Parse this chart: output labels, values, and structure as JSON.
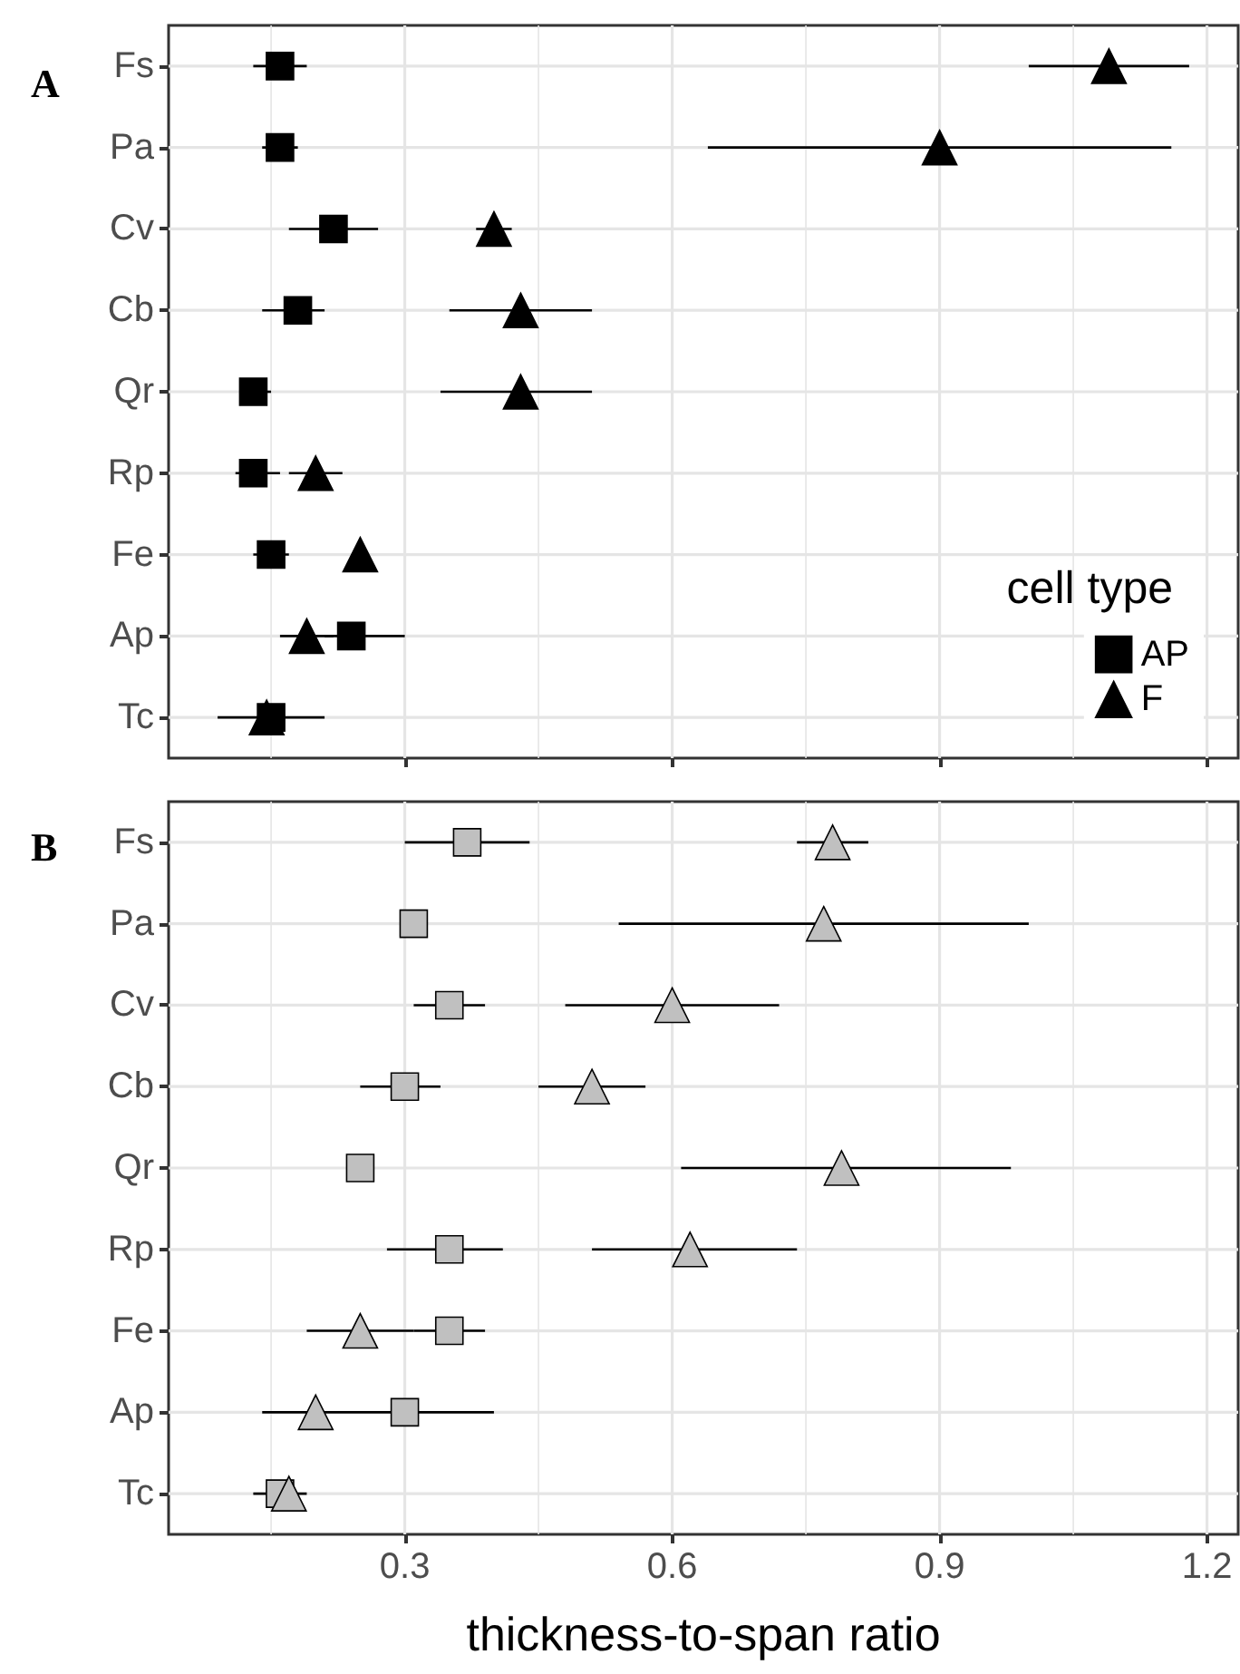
{
  "chart_data": [
    {
      "type": "scatter",
      "title": "A",
      "orientation": "horizontal",
      "categories": [
        "Fs",
        "Pa",
        "Cv",
        "Cb",
        "Qr",
        "Rp",
        "Fe",
        "Ap",
        "Tc"
      ],
      "xlim": [
        0.035,
        1.235
      ],
      "xticks": [
        0.3,
        0.6,
        0.9,
        1.2
      ],
      "tick_labels": "y",
      "grid": true,
      "legend": "bottom right",
      "legend_title": "cell type",
      "series": [
        {
          "name": "AP",
          "color": "#000000",
          "marker": "square",
          "values": [
            0.16,
            0.16,
            0.22,
            0.18,
            0.13,
            0.13,
            0.15,
            0.24,
            0.15
          ],
          "errors": [
            [
              0.13,
              0.19
            ],
            [
              0.14,
              0.18
            ],
            [
              0.17,
              0.27
            ],
            [
              0.14,
              0.21
            ],
            [
              0.12,
              0.15
            ],
            [
              0.11,
              0.16
            ],
            [
              0.13,
              0.17
            ],
            [
              0.21,
              0.3
            ],
            [
              0.09,
              0.21
            ]
          ]
        },
        {
          "name": "F",
          "color": "#000000",
          "marker": "triangle",
          "values": [
            1.09,
            0.9,
            0.4,
            0.43,
            0.43,
            0.2,
            0.25,
            0.19,
            0.145
          ],
          "errors": [
            [
              1.0,
              1.18
            ],
            [
              0.64,
              1.16
            ],
            [
              0.38,
              0.42
            ],
            [
              0.35,
              0.51
            ],
            [
              0.34,
              0.51
            ],
            [
              0.17,
              0.23
            ],
            null,
            [
              0.16,
              0.22
            ],
            null
          ]
        }
      ]
    },
    {
      "type": "scatter",
      "title": "B",
      "orientation": "horizontal",
      "categories": [
        "Fs",
        "Pa",
        "Cv",
        "Cb",
        "Qr",
        "Rp",
        "Fe",
        "Ap",
        "Tc"
      ],
      "xlim": [
        0.035,
        1.235
      ],
      "xticks": [
        0.3,
        0.6,
        0.9,
        1.2
      ],
      "xlabel": "thickness-to-span ratio",
      "grid": true,
      "series": [
        {
          "color": "#c0c0c0",
          "marker": "square",
          "values": [
            0.37,
            0.31,
            0.35,
            0.3,
            0.25,
            0.35,
            0.35,
            0.3,
            0.16
          ],
          "errors": [
            [
              0.3,
              0.44
            ],
            null,
            [
              0.31,
              0.39
            ],
            [
              0.25,
              0.34
            ],
            null,
            [
              0.28,
              0.41
            ],
            [
              0.31,
              0.39
            ],
            [
              0.14,
              0.4
            ],
            [
              0.13,
              0.19
            ]
          ]
        },
        {
          "color": "#c0c0c0",
          "marker": "triangle",
          "values": [
            0.78,
            0.77,
            0.6,
            0.51,
            0.79,
            0.62,
            0.25,
            0.2,
            0.17
          ],
          "errors": [
            [
              0.74,
              0.82
            ],
            [
              0.54,
              1.0
            ],
            [
              0.48,
              0.72
            ],
            [
              0.45,
              0.57
            ],
            [
              0.61,
              0.98
            ],
            [
              0.51,
              0.74
            ],
            [
              0.19,
              0.31
            ],
            null,
            null
          ]
        }
      ]
    }
  ]
}
